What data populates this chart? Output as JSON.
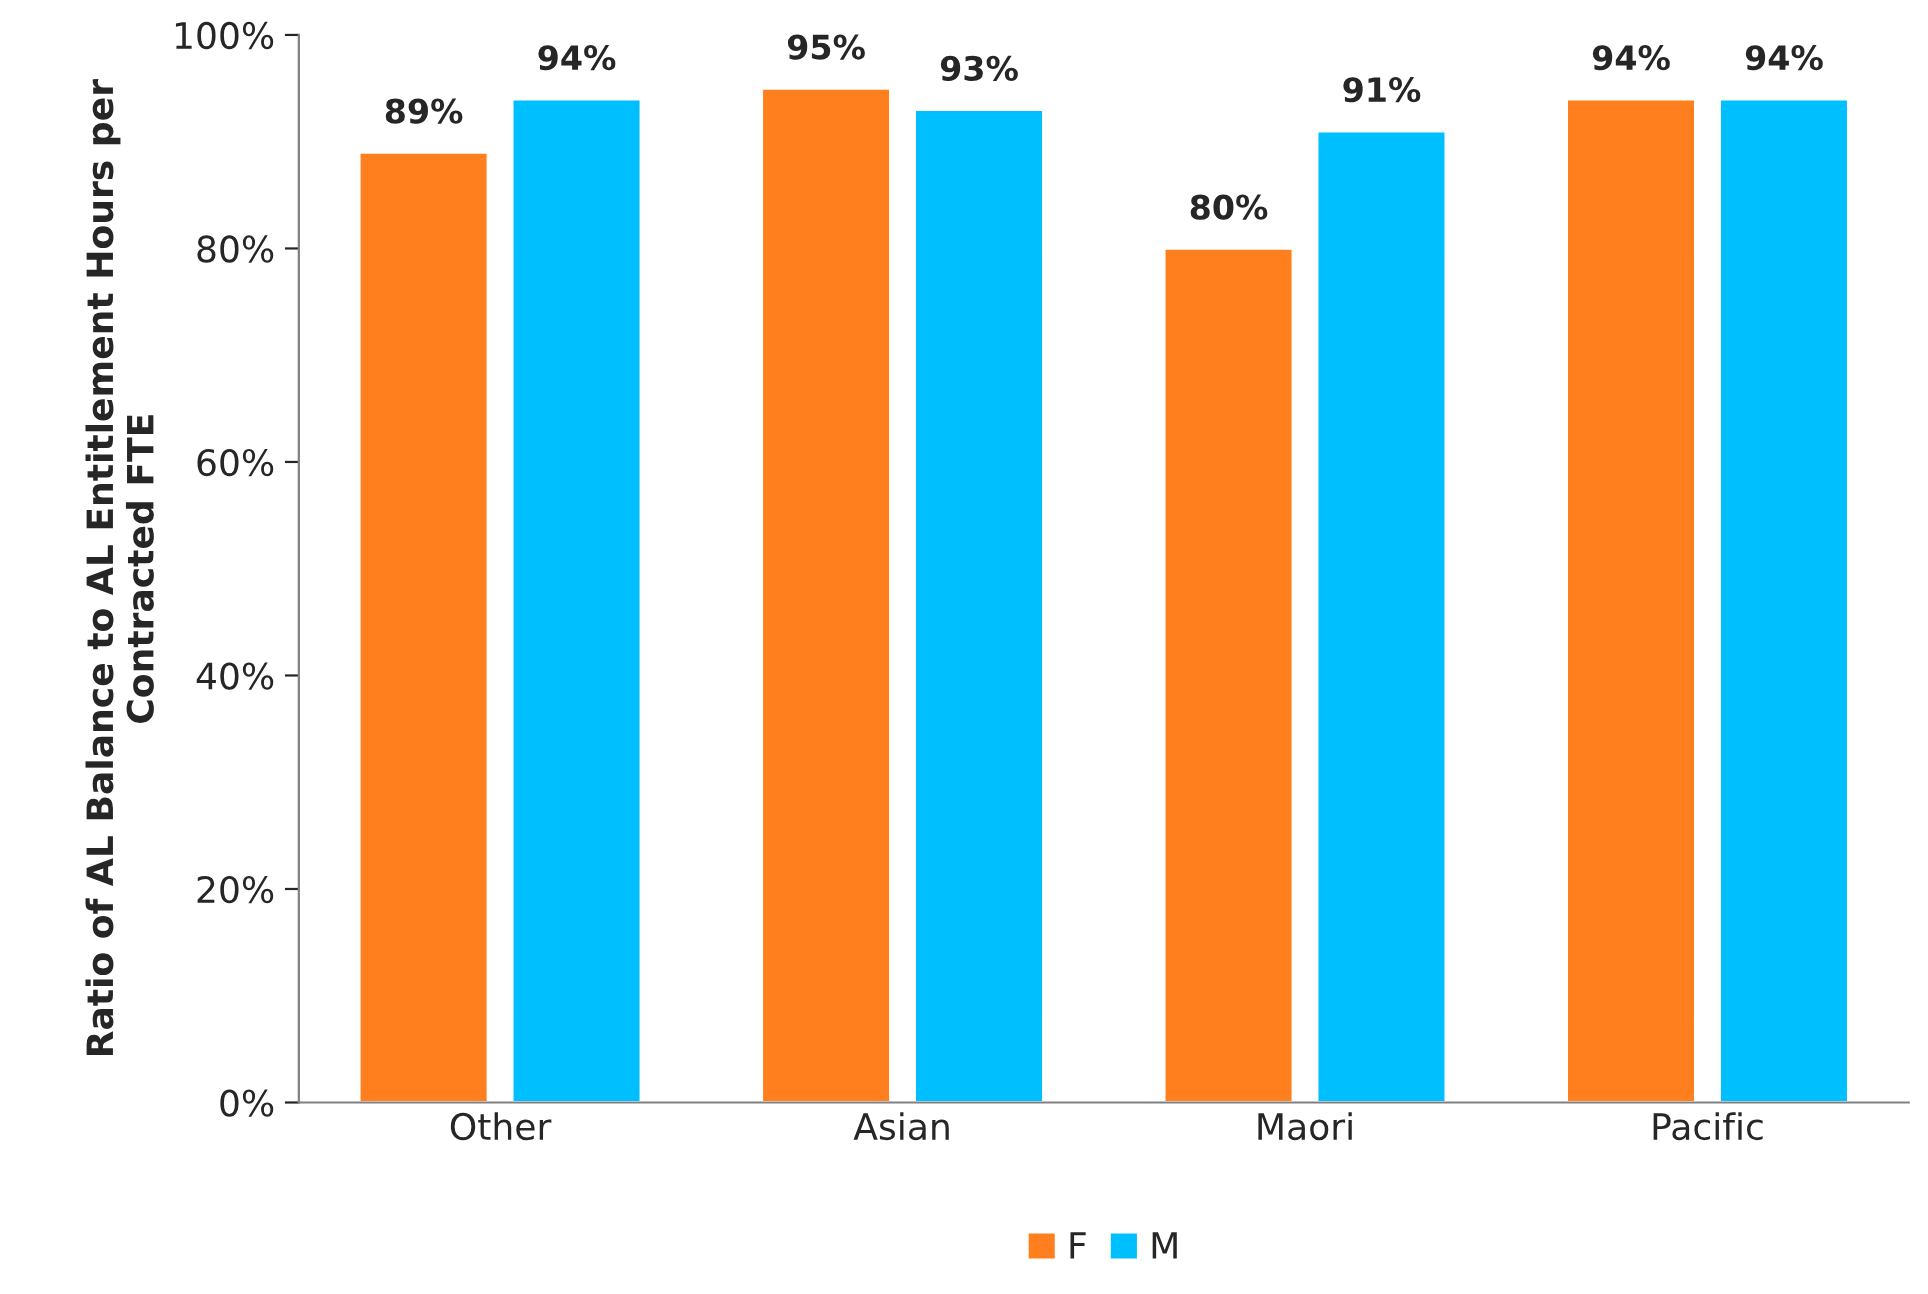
{
  "chart_data": {
    "type": "bar",
    "ylabel": "Ratio of AL Balance to AL Entitlement Hours per Contracted FTE",
    "categories": [
      "Other",
      "Asian",
      "Maori",
      "Pacific"
    ],
    "series": [
      {
        "name": "F",
        "color": "#ff7f1e",
        "values": [
          89,
          95,
          80,
          94
        ],
        "value_labels": [
          "89%",
          "95%",
          "80%",
          "94%"
        ]
      },
      {
        "name": "M",
        "color": "#00bfff",
        "values": [
          94,
          93,
          91,
          94
        ],
        "value_labels": [
          "94%",
          "93%",
          "91%",
          "94%"
        ]
      }
    ],
    "ylim": [
      0,
      100
    ],
    "yticks": [
      {
        "value": 0,
        "label": "0%"
      },
      {
        "value": 20,
        "label": "20%"
      },
      {
        "value": 40,
        "label": "40%"
      },
      {
        "value": 60,
        "label": "60%"
      },
      {
        "value": 80,
        "label": "80%"
      },
      {
        "value": 100,
        "label": "100%"
      }
    ],
    "grid": false,
    "legend": "bottom"
  }
}
